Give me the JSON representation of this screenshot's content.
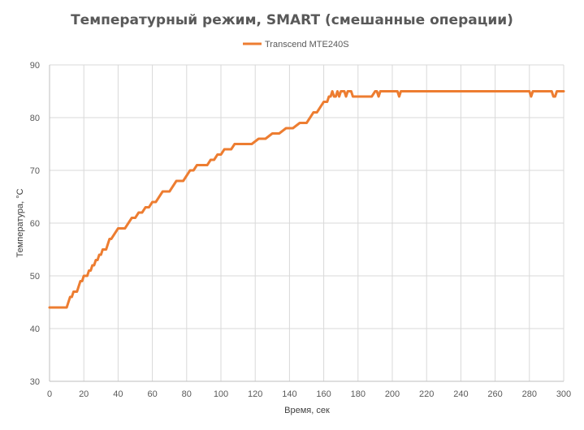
{
  "chart_data": {
    "type": "line",
    "title": "Температурный режим, SMART (смешанные операции)",
    "xlabel": "Время, сек",
    "ylabel": "Температура, °C",
    "xlim": [
      0,
      300
    ],
    "ylim": [
      30,
      90
    ],
    "xticks": [
      0,
      20,
      40,
      60,
      80,
      100,
      120,
      140,
      160,
      180,
      200,
      220,
      240,
      260,
      280,
      300
    ],
    "yticks": [
      30,
      40,
      50,
      60,
      70,
      80,
      90
    ],
    "grid": true,
    "legend_position": "top-center",
    "series": [
      {
        "name": "Transcend MTE240S",
        "color": "#ED7D31",
        "x": [
          0,
          9,
          10,
          11,
          12,
          13,
          14,
          15,
          16,
          17,
          18,
          19,
          20,
          21,
          22,
          23,
          24,
          25,
          26,
          27,
          28,
          29,
          30,
          31,
          32,
          33,
          34,
          35,
          36,
          38,
          40,
          42,
          44,
          46,
          48,
          50,
          52,
          54,
          56,
          58,
          60,
          62,
          64,
          66,
          68,
          70,
          72,
          74,
          76,
          78,
          80,
          82,
          84,
          86,
          88,
          90,
          92,
          94,
          96,
          98,
          100,
          102,
          104,
          106,
          108,
          110,
          114,
          118,
          122,
          126,
          130,
          134,
          138,
          142,
          146,
          150,
          152,
          154,
          156,
          158,
          160,
          162,
          163,
          164,
          165,
          166,
          167,
          168,
          169,
          170,
          171,
          172,
          173,
          174,
          175,
          176,
          177,
          178,
          180,
          184,
          188,
          190,
          191,
          192,
          193,
          194,
          200,
          203,
          204,
          205,
          210,
          240,
          270,
          280,
          281,
          282,
          283,
          290,
          293,
          294,
          295,
          296,
          300
        ],
        "values": [
          44,
          44,
          44,
          45,
          46,
          46,
          47,
          47,
          47,
          48,
          49,
          49,
          50,
          50,
          50,
          51,
          51,
          52,
          52,
          53,
          53,
          54,
          54,
          55,
          55,
          55,
          56,
          57,
          57,
          58,
          59,
          59,
          59,
          60,
          61,
          61,
          62,
          62,
          63,
          63,
          64,
          64,
          65,
          66,
          66,
          66,
          67,
          68,
          68,
          68,
          69,
          70,
          70,
          71,
          71,
          71,
          71,
          72,
          72,
          73,
          73,
          74,
          74,
          74,
          75,
          75,
          75,
          75,
          76,
          76,
          77,
          77,
          78,
          78,
          79,
          79,
          80,
          81,
          81,
          82,
          83,
          83,
          84,
          84,
          85,
          84,
          84,
          85,
          84,
          85,
          85,
          85,
          84,
          85,
          85,
          85,
          84,
          84,
          84,
          84,
          84,
          85,
          85,
          84,
          85,
          85,
          85,
          85,
          84,
          85,
          85,
          85,
          85,
          85,
          84,
          85,
          85,
          85,
          85,
          84,
          84,
          85,
          85
        ]
      }
    ]
  }
}
